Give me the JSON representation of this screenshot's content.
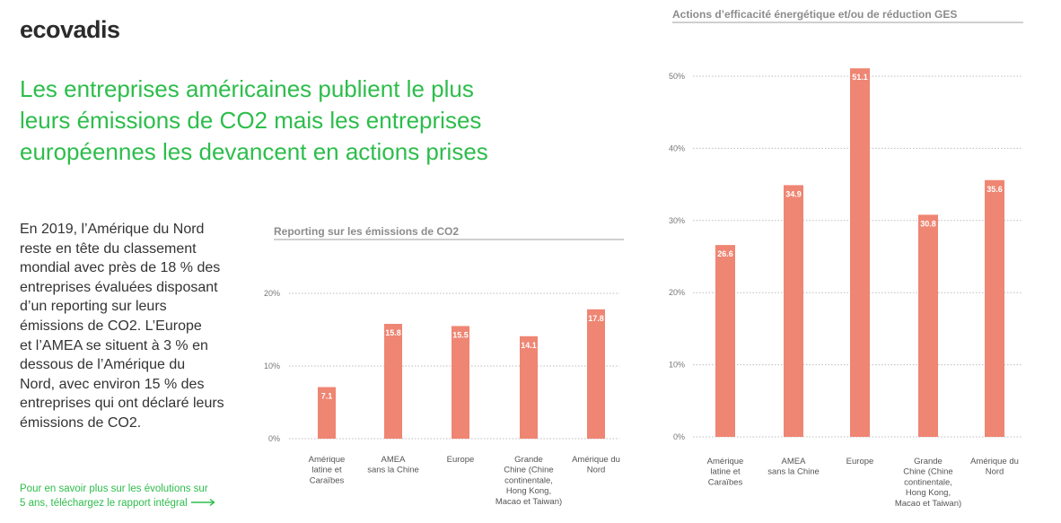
{
  "brand": {
    "logo_text": "ecovadis"
  },
  "headline": [
    "Les entreprises américaines publient le plus",
    "leurs émissions de CO2 mais les entreprises",
    "européennes les devancent en actions prises"
  ],
  "body_lines": [
    "En 2019, l’Amérique du Nord",
    "reste en tête du classement",
    "mondial avec près de 18 % des",
    "entreprises évaluées disposant",
    "d’un reporting sur leurs",
    "émissions de CO2. L’Europe",
    "et l’AMEA se situent à 3 % en",
    "dessous de l’Amérique du",
    "Nord, avec environ 15 % des",
    "entreprises qui ont déclaré leurs",
    "émissions de CO2."
  ],
  "cta": {
    "lines": [
      "Pour en savoir plus sur les évolutions sur",
      "5 ans, téléchargez le rapport intégral"
    ],
    "icon": "arrow-right-icon"
  },
  "colors": {
    "bar": "#ef8573",
    "accent": "#2dbd4b",
    "grid": "#bdbdbd"
  },
  "chart_data": [
    {
      "type": "bar",
      "title": "Reporting sur les émissions de CO2",
      "categories": [
        [
          "Amérique",
          "latine et",
          "Caraïbes"
        ],
        [
          "AMEA",
          "sans la Chine"
        ],
        [
          "Europe"
        ],
        [
          "Grande",
          "Chine (Chine",
          "continentale,",
          "Hong Kong,",
          "Macao et Taiwan)"
        ],
        [
          "Amérique du",
          "Nord"
        ]
      ],
      "values": [
        7.1,
        15.8,
        15.5,
        14.1,
        17.8
      ],
      "value_labels": [
        "7.1",
        "15.8",
        "15.5",
        "14.1",
        "17.8"
      ],
      "yticks": [
        "0%",
        "10%",
        "20%"
      ],
      "ylim": [
        0,
        20
      ],
      "grid": true
    },
    {
      "type": "bar",
      "title": "Actions d’efficacité énergétique et/ou de réduction GES",
      "categories": [
        [
          "Amérique",
          "latine et",
          "Caraïbes"
        ],
        [
          "AMEA",
          "sans la Chine"
        ],
        [
          "Europe"
        ],
        [
          "Grande",
          "Chine (Chine",
          "continentale,",
          "Hong Kong,",
          "Macao et Taiwan)"
        ],
        [
          "Amérique du",
          "Nord"
        ]
      ],
      "values": [
        26.6,
        34.9,
        51.1,
        30.8,
        35.6
      ],
      "value_labels": [
        "26.6",
        "34.9",
        "51.1",
        "30.8",
        "35.6"
      ],
      "yticks": [
        "0%",
        "10%",
        "20%",
        "30%",
        "40%",
        "50%"
      ],
      "ylim": [
        0,
        50
      ],
      "grid": true
    }
  ]
}
